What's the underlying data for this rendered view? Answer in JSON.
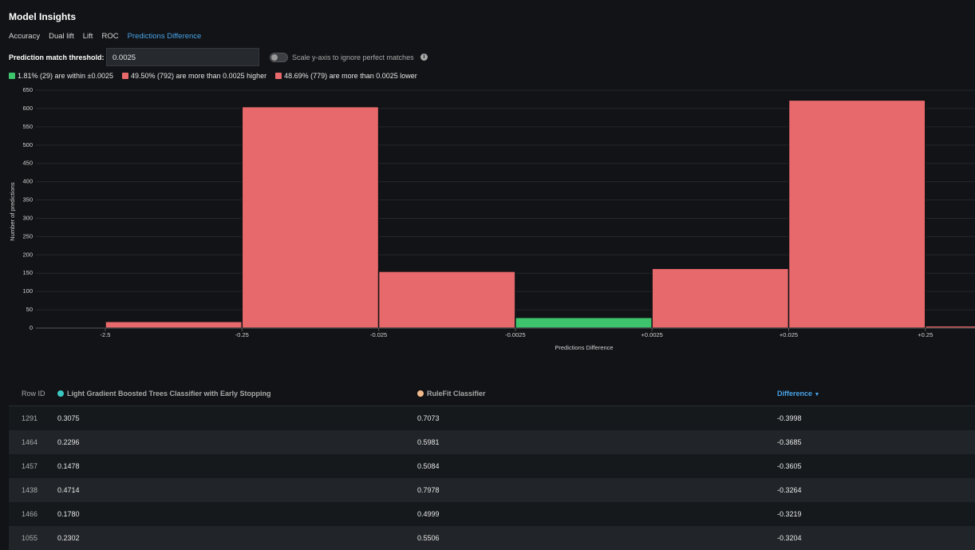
{
  "header": {
    "title": "Model Insights"
  },
  "tabs": [
    "Accuracy",
    "Dual lift",
    "Lift",
    "ROC",
    "Predictions Difference"
  ],
  "threshold": {
    "label": "Prediction match threshold:",
    "value": "0.0025"
  },
  "toggle": {
    "label": "Scale y-axis to ignore perfect matches"
  },
  "summary": [
    {
      "text": "1.81% (29) are within ±0.0025",
      "color": "#3ec46d"
    },
    {
      "text": "49.50% (792) are more than 0.0025 higher",
      "color": "#e8696b"
    },
    {
      "text": "48.69% (779) are more than 0.0025 lower",
      "color": "#e8696b"
    }
  ],
  "chart_data": {
    "type": "histogram",
    "x_label": "Predictions Difference",
    "y_label": "Number of predictions",
    "bins": [
      null,
      "-2.5",
      "-0.25",
      "-0.025",
      "-0.0025",
      "+0.0025",
      "+0.025",
      "+0.25",
      null
    ],
    "values": [
      1,
      18,
      605,
      155,
      29,
      163,
      623,
      6
    ],
    "bar_colors": [
      "#e8696b",
      "#e8696b",
      "#e8696b",
      "#e8696b",
      "#3ec46d",
      "#e8696b",
      "#e8696b",
      "#e8696b"
    ],
    "ylim": [
      0,
      650
    ],
    "yticks": [
      0,
      50,
      100,
      150,
      200,
      250,
      300,
      350,
      400,
      450,
      500,
      550,
      600,
      650
    ],
    "grid": true
  },
  "table": {
    "columns": [
      "Row ID",
      "Light Gradient Boosted Trees Classifier with Early Stopping",
      "RuleFit Classifier",
      "Difference"
    ],
    "rows": [
      [
        "1291",
        "0.3075",
        "0.7073",
        "-0.3998"
      ],
      [
        "1464",
        "0.2296",
        "0.5981",
        "-0.3685"
      ],
      [
        "1457",
        "0.1478",
        "0.5084",
        "-0.3605"
      ],
      [
        "1438",
        "0.4714",
        "0.7978",
        "-0.3264"
      ],
      [
        "1466",
        "0.1780",
        "0.4999",
        "-0.3219"
      ],
      [
        "1055",
        "0.2302",
        "0.5506",
        "-0.3204"
      ]
    ]
  }
}
